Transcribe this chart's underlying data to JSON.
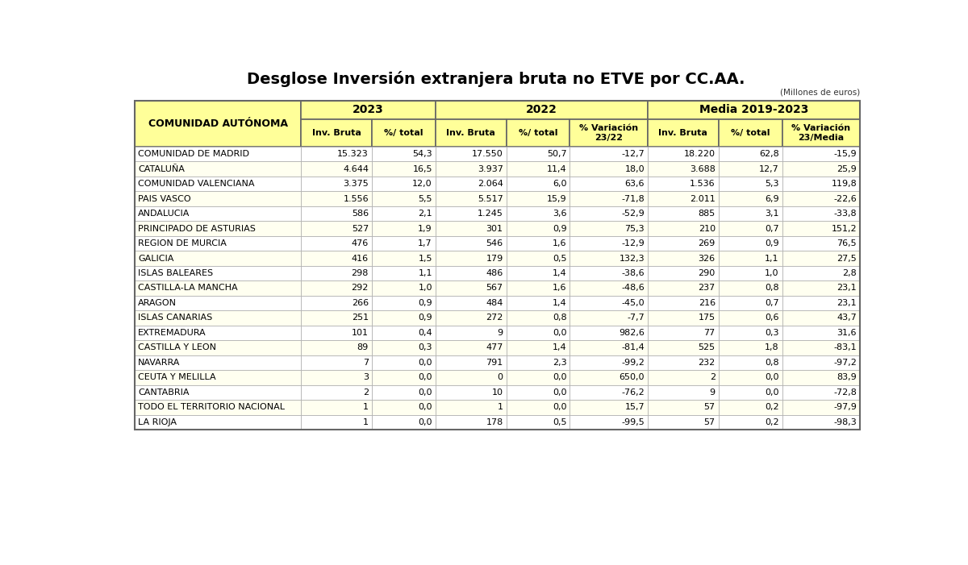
{
  "title": "Desglose Inversión extranjera bruta no ETVE por CC.AA.",
  "subtitle": "(Millones de euros)",
  "rows": [
    [
      "COMUNIDAD DE MADRID",
      "15.323",
      "54,3",
      "17.550",
      "50,7",
      "-12,7",
      "18.220",
      "62,8",
      "-15,9"
    ],
    [
      "CATALUÑA",
      "4.644",
      "16,5",
      "3.937",
      "11,4",
      "18,0",
      "3.688",
      "12,7",
      "25,9"
    ],
    [
      "COMUNIDAD VALENCIANA",
      "3.375",
      "12,0",
      "2.064",
      "6,0",
      "63,6",
      "1.536",
      "5,3",
      "119,8"
    ],
    [
      "PAIS VASCO",
      "1.556",
      "5,5",
      "5.517",
      "15,9",
      "-71,8",
      "2.011",
      "6,9",
      "-22,6"
    ],
    [
      "ANDALUCIA",
      "586",
      "2,1",
      "1.245",
      "3,6",
      "-52,9",
      "885",
      "3,1",
      "-33,8"
    ],
    [
      "PRINCIPADO DE ASTURIAS",
      "527",
      "1,9",
      "301",
      "0,9",
      "75,3",
      "210",
      "0,7",
      "151,2"
    ],
    [
      "REGION DE MURCIA",
      "476",
      "1,7",
      "546",
      "1,6",
      "-12,9",
      "269",
      "0,9",
      "76,5"
    ],
    [
      "GALICIA",
      "416",
      "1,5",
      "179",
      "0,5",
      "132,3",
      "326",
      "1,1",
      "27,5"
    ],
    [
      "ISLAS BALEARES",
      "298",
      "1,1",
      "486",
      "1,4",
      "-38,6",
      "290",
      "1,0",
      "2,8"
    ],
    [
      "CASTILLA-LA MANCHA",
      "292",
      "1,0",
      "567",
      "1,6",
      "-48,6",
      "237",
      "0,8",
      "23,1"
    ],
    [
      "ARAGON",
      "266",
      "0,9",
      "484",
      "1,4",
      "-45,0",
      "216",
      "0,7",
      "23,1"
    ],
    [
      "ISLAS CANARIAS",
      "251",
      "0,9",
      "272",
      "0,8",
      "-7,7",
      "175",
      "0,6",
      "43,7"
    ],
    [
      "EXTREMADURA",
      "101",
      "0,4",
      "9",
      "0,0",
      "982,6",
      "77",
      "0,3",
      "31,6"
    ],
    [
      "CASTILLA Y LEON",
      "89",
      "0,3",
      "477",
      "1,4",
      "-81,4",
      "525",
      "1,8",
      "-83,1"
    ],
    [
      "NAVARRA",
      "7",
      "0,0",
      "791",
      "2,3",
      "-99,2",
      "232",
      "0,8",
      "-97,2"
    ],
    [
      "CEUTA Y MELILLA",
      "3",
      "0,0",
      "0",
      "0,0",
      "650,0",
      "2",
      "0,0",
      "83,9"
    ],
    [
      "CANTABRIA",
      "2",
      "0,0",
      "10",
      "0,0",
      "-76,2",
      "9",
      "0,0",
      "-72,8"
    ],
    [
      "TODO EL TERRITORIO NACIONAL",
      "1",
      "0,0",
      "1",
      "0,0",
      "15,7",
      "57",
      "0,2",
      "-97,9"
    ],
    [
      "LA RIOJA",
      "1",
      "0,0",
      "178",
      "0,5",
      "-99,5",
      "57",
      "0,2",
      "-98,3"
    ]
  ],
  "header_bg": "#FFFF99",
  "row_bg_white": "#FFFFFF",
  "row_bg_yellow": "#FFFFF0",
  "border_color": "#AAAAAA",
  "border_color_dark": "#666666",
  "title_fontsize": 14,
  "data_fontsize": 8,
  "header_fontsize": 9,
  "subheader_fontsize": 8
}
